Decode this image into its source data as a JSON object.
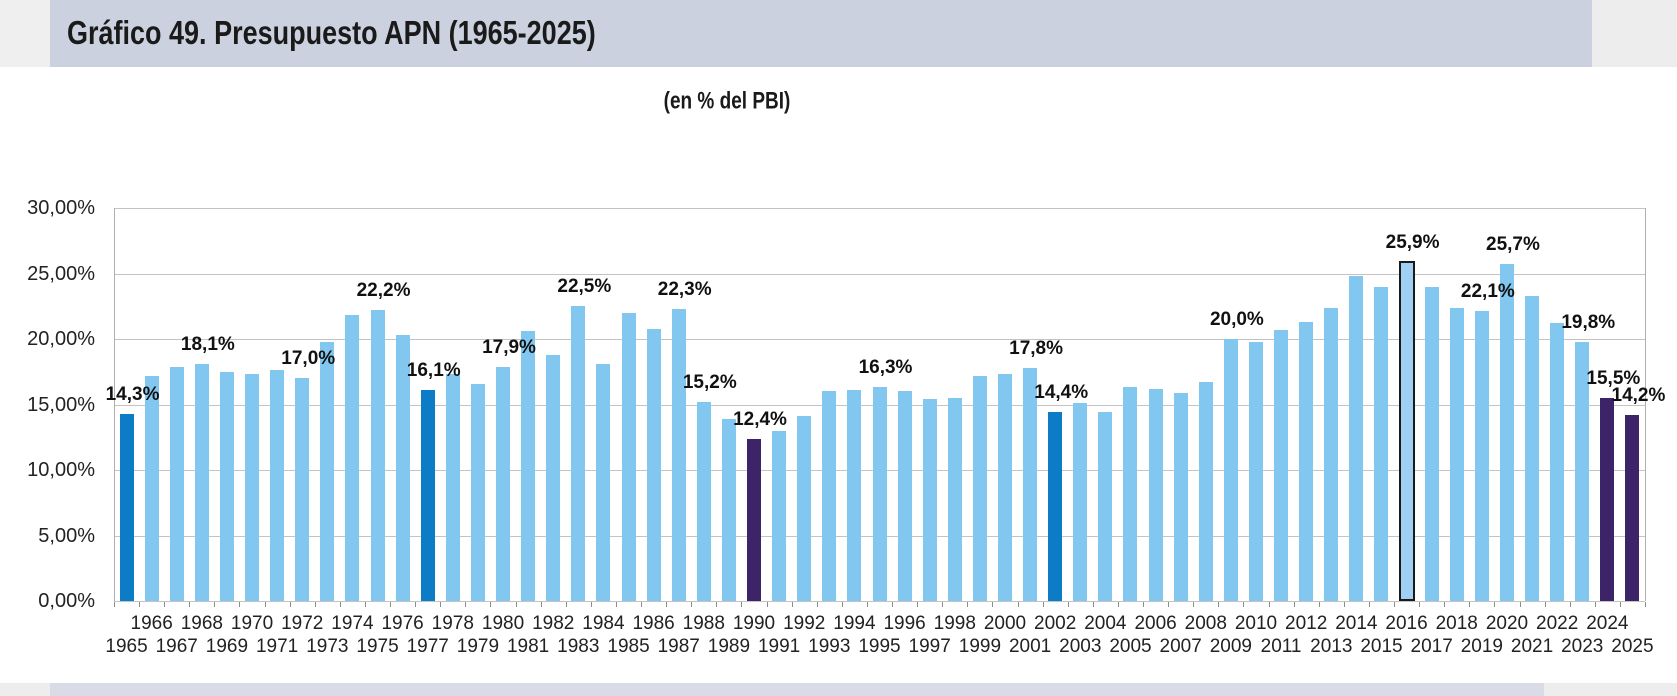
{
  "title": "Gráfico 49. Presupuesto APN (1965-2025)",
  "subtitle": "(en % del PBI)",
  "chart_data": {
    "type": "bar",
    "title": "Gráfico 49. Presupuesto APN (1965-2025)",
    "subtitle": "(en % del PBI)",
    "ylabel": "",
    "xlabel": "",
    "ylim": [
      0,
      30
    ],
    "ytick_labels": [
      "0,00%",
      "5,00%",
      "10,00%",
      "15,00%",
      "20,00%",
      "25,00%",
      "30,00%"
    ],
    "grid": true,
    "legend": false,
    "categories": [
      1965,
      1966,
      1967,
      1968,
      1969,
      1970,
      1971,
      1972,
      1973,
      1974,
      1975,
      1976,
      1977,
      1978,
      1979,
      1980,
      1981,
      1982,
      1983,
      1984,
      1985,
      1986,
      1987,
      1988,
      1989,
      1990,
      1991,
      1992,
      1993,
      1994,
      1995,
      1996,
      1997,
      1998,
      1999,
      2000,
      2001,
      2002,
      2003,
      2004,
      2005,
      2006,
      2007,
      2008,
      2009,
      2010,
      2011,
      2012,
      2013,
      2014,
      2015,
      2016,
      2017,
      2018,
      2019,
      2020,
      2021,
      2022,
      2023,
      2024,
      2025
    ],
    "values": [
      14.3,
      17.2,
      17.9,
      18.1,
      17.5,
      17.3,
      17.6,
      17.0,
      19.8,
      21.8,
      22.2,
      20.3,
      16.1,
      17.3,
      16.6,
      17.9,
      20.6,
      18.8,
      22.5,
      18.1,
      22.0,
      20.8,
      22.3,
      15.2,
      13.9,
      12.4,
      13.0,
      14.1,
      16.0,
      16.1,
      16.3,
      16.0,
      15.4,
      15.5,
      17.2,
      17.3,
      17.8,
      14.4,
      15.1,
      14.4,
      16.3,
      16.2,
      15.9,
      16.7,
      20.0,
      19.8,
      20.7,
      21.3,
      22.4,
      24.8,
      24.0,
      25.9,
      24.0,
      22.4,
      22.1,
      25.7,
      23.3,
      21.2,
      19.8,
      15.5,
      14.2
    ],
    "data_labels": {
      "1965": "14,3%",
      "1968": "18,1%",
      "1972": "17,0%",
      "1975": "22,2%",
      "1977": "16,1%",
      "1980": "17,9%",
      "1983": "22,5%",
      "1987": "22,3%",
      "1988": "15,2%",
      "1990": "12,4%",
      "1995": "16,3%",
      "2001": "17,8%",
      "2002": "14,4%",
      "2009": "20,0%",
      "2016": "25,9%",
      "2019": "22,1%",
      "2020": "25,7%",
      "2023": "19,8%",
      "2024": "15,5%",
      "2025": "14,2%"
    },
    "colors": {
      "bar_default": "#82C7F0",
      "bar_highlight_blue": "#0D7CC6",
      "bar_highlight_purple": "#3D2368",
      "bar_outlined_fill": "#9FD0F4",
      "bar_outline": "#1a1a1a",
      "header_band": "#ccd1df",
      "footer_band": "#d9dce6"
    },
    "highlight_blue_years": [
      1965,
      1977,
      2002
    ],
    "highlight_purple_years": [
      1990,
      2024,
      2025
    ],
    "outlined_years": [
      2016
    ]
  }
}
